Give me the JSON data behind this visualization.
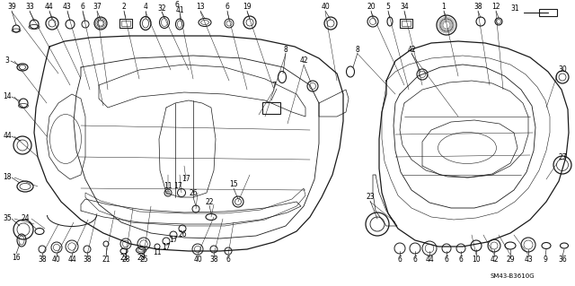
{
  "bg_color": "#ffffff",
  "line_color": "#1a1a1a",
  "text_color": "#000000",
  "diagram_code": "SM43-B3610G",
  "fig_width": 6.4,
  "fig_height": 3.19,
  "dpi": 100,
  "font_size": 5.5,
  "font_size_small": 4.8
}
